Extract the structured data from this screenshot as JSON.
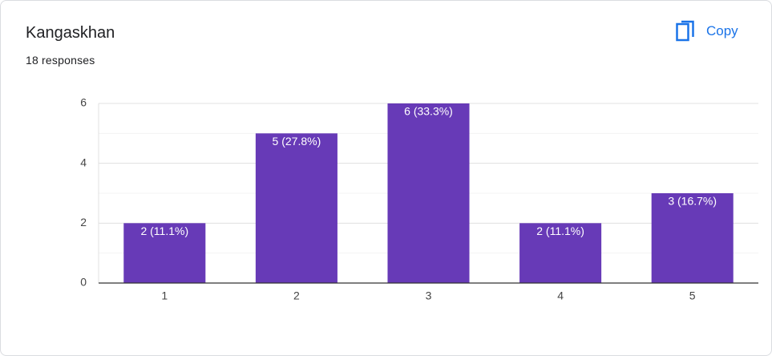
{
  "title": "Kangaskhan",
  "subtitle": "18 responses",
  "copy_button": "Copy",
  "chart_data": {
    "type": "bar",
    "categories": [
      "1",
      "2",
      "3",
      "4",
      "5"
    ],
    "values": [
      2,
      5,
      6,
      2,
      3
    ],
    "value_labels": [
      "2 (11.1%)",
      "5 (27.8%)",
      "6 (33.3%)",
      "2 (11.1%)",
      "3 (16.7%)"
    ],
    "color": "#673ab7",
    "ylim": [
      0,
      6
    ],
    "yticks": [
      0,
      2,
      4,
      6
    ],
    "minor_yticks": [
      1,
      3,
      5
    ],
    "grid": true
  }
}
